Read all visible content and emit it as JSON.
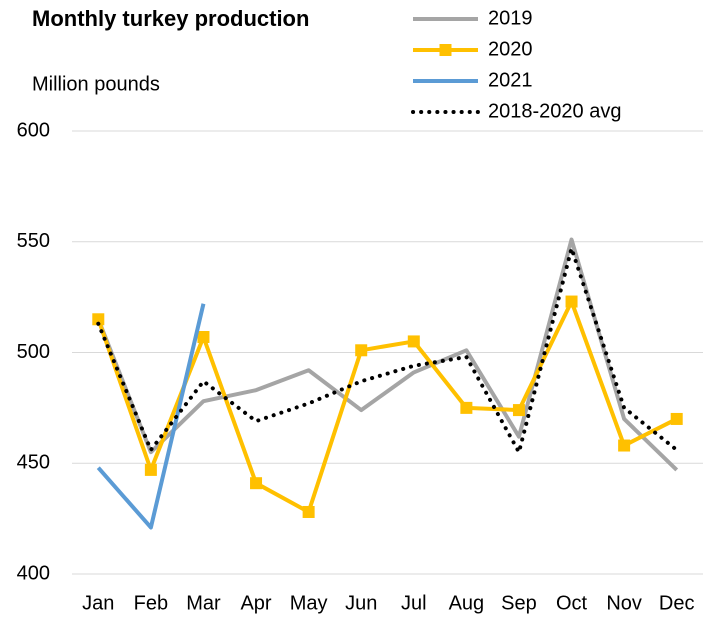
{
  "chart_data": {
    "type": "line",
    "title": "Monthly turkey production",
    "ylabel": "Million pounds",
    "categories": [
      "Jan",
      "Feb",
      "Mar",
      "Apr",
      "May",
      "Jun",
      "Jul",
      "Aug",
      "Sep",
      "Oct",
      "Nov",
      "Dec"
    ],
    "series": [
      {
        "name": "2019",
        "color": "#a5a5a5",
        "style": "solid",
        "values": [
          515,
          455,
          478,
          483,
          492,
          474,
          491,
          501,
          462,
          551,
          470,
          447
        ]
      },
      {
        "name": "2020",
        "color": "#ffc000",
        "style": "solid",
        "marker": "square",
        "values": [
          515,
          447,
          507,
          441,
          428,
          501,
          505,
          475,
          474,
          523,
          458,
          470
        ]
      },
      {
        "name": "2021",
        "color": "#5b9bd5",
        "style": "solid",
        "values": [
          448,
          421,
          522,
          null,
          null,
          null,
          null,
          null,
          null,
          null,
          null,
          null
        ]
      },
      {
        "name": "2018-2020 avg",
        "color": "#000000",
        "style": "dotted",
        "values": [
          513,
          456,
          487,
          469,
          477,
          487,
          494,
          498,
          455,
          547,
          475,
          456
        ]
      }
    ],
    "ylim": [
      400,
      600
    ],
    "yticks": [
      400,
      450,
      500,
      550,
      600
    ],
    "grid": true
  }
}
